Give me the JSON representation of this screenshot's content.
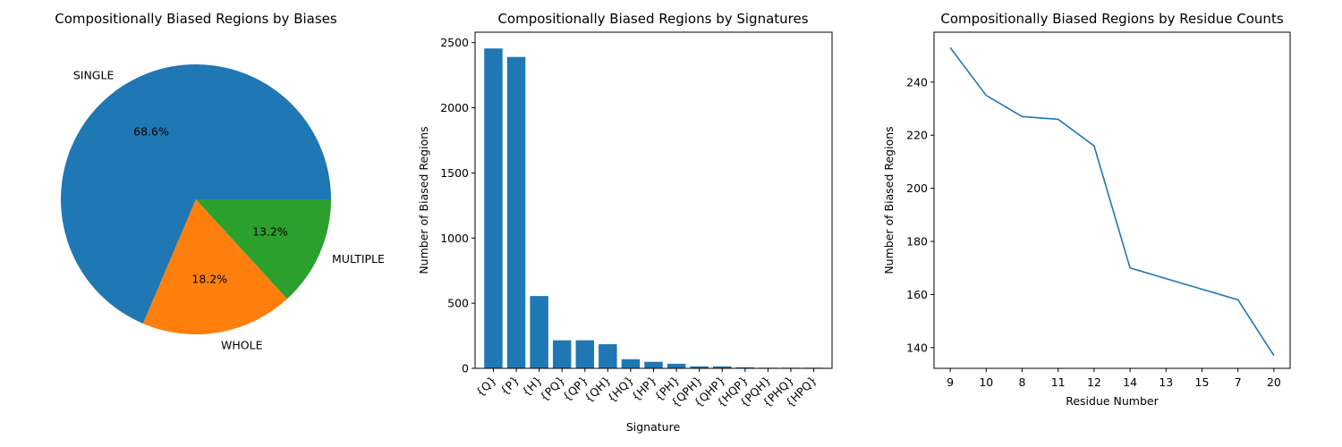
{
  "chart_data": [
    {
      "type": "pie",
      "title": "Compositionally Biased Regions by Biases",
      "labels": [
        "SINGLE",
        "WHOLE",
        "MULTIPLE"
      ],
      "values": [
        68.6,
        18.2,
        13.2
      ],
      "pct_labels": [
        "68.6%",
        "18.2%",
        "13.2%"
      ],
      "colors": [
        "#1f77b4",
        "#ff7f0e",
        "#2ca02c"
      ]
    },
    {
      "type": "bar",
      "title": "Compositionally Biased Regions by Signatures",
      "xlabel": "Signature",
      "ylabel": "Number of Biased Regions",
      "categories": [
        "{Q}",
        "{P}",
        "{H}",
        "{PQ}",
        "{QP}",
        "{QH}",
        "{HQ}",
        "{HP}",
        "{PH}",
        "{QPH}",
        "{QHP}",
        "{HQP}",
        "{PQH}",
        "{PHQ}",
        "{HPQ}"
      ],
      "values": [
        2455,
        2390,
        555,
        215,
        215,
        185,
        70,
        50,
        35,
        15,
        15,
        8,
        5,
        5,
        5
      ],
      "ylim": [
        0,
        2580
      ],
      "yticks": [
        0,
        500,
        1000,
        1500,
        2000,
        2500
      ],
      "color": "#1f77b4"
    },
    {
      "type": "line",
      "title": "Compositionally Biased Regions by Residue Counts",
      "xlabel": "Residue Number",
      "ylabel": "Number of Biased Regions",
      "categories": [
        "9",
        "10",
        "8",
        "11",
        "12",
        "14",
        "13",
        "15",
        "7",
        "20"
      ],
      "values": [
        253,
        235,
        227,
        226,
        216,
        170,
        166,
        162,
        158,
        137
      ],
      "ylim": [
        132.2,
        258.8
      ],
      "yticks": [
        140,
        160,
        180,
        200,
        220,
        240
      ],
      "color": "#1f77b4"
    }
  ]
}
